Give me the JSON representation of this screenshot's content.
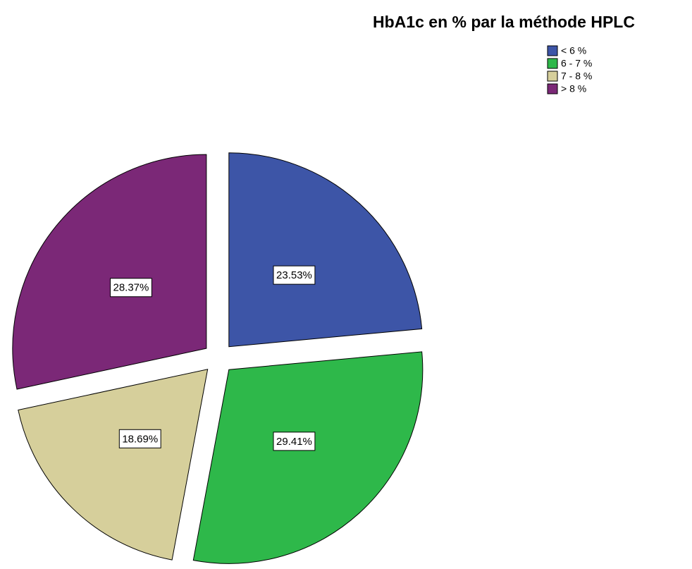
{
  "chart_data": {
    "type": "pie",
    "title": "HbA1c en % par la méthode HPLC",
    "categories": [
      "< 6 %",
      "6 - 7 %",
      "7 - 8 %",
      "> 8 %"
    ],
    "values": [
      23.53,
      29.41,
      18.69,
      28.37
    ],
    "value_labels": [
      "23.53%",
      "29.41%",
      "18.69%",
      "28.37%"
    ],
    "colors": [
      "#3d55a7",
      "#2eb84a",
      "#d6cf9b",
      "#7b2877"
    ],
    "legend": "top-right"
  }
}
